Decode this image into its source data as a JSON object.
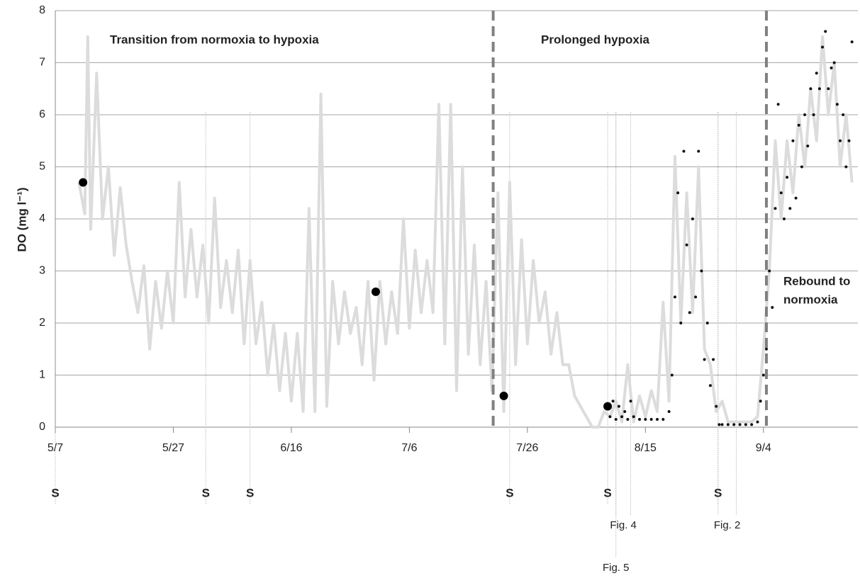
{
  "chart_data": {
    "type": "line",
    "y_label": "DO (mg l⁻¹)",
    "ylim": [
      0,
      8
    ],
    "yticks": [
      0,
      1,
      2,
      3,
      4,
      5,
      6,
      7,
      8
    ],
    "grid": true,
    "xlim": [
      0,
      136
    ],
    "xticks": [
      {
        "value": 0,
        "label": "5/7"
      },
      {
        "value": 20,
        "label": "5/27"
      },
      {
        "value": 40,
        "label": "6/16"
      },
      {
        "value": 60,
        "label": "7/6"
      },
      {
        "value": 80,
        "label": "7/26"
      },
      {
        "value": 100,
        "label": "8/15"
      },
      {
        "value": 120,
        "label": "9/4"
      }
    ],
    "series": [
      {
        "style": "line",
        "color": "#dcdcdc",
        "x": [
          4,
          5,
          5.5,
          6,
          7,
          8,
          9,
          10,
          11,
          12,
          13,
          14,
          15,
          16,
          17,
          18,
          19,
          20,
          21,
          22,
          23,
          24,
          25,
          26,
          27,
          28,
          29,
          30,
          31,
          32,
          33,
          34,
          35,
          36,
          37,
          38,
          39,
          40,
          41,
          42,
          43,
          44,
          45,
          46,
          47,
          48,
          49,
          50,
          51,
          52,
          53,
          54,
          55,
          56,
          57,
          58,
          59,
          60,
          61,
          62,
          63,
          64,
          65,
          66,
          67,
          68,
          69,
          70,
          71,
          72,
          73,
          74,
          75,
          76,
          77,
          78,
          79,
          80,
          81,
          82,
          83,
          84,
          85,
          86,
          87,
          88,
          89,
          90,
          91,
          92,
          93,
          94,
          95,
          96,
          97,
          98,
          99,
          100,
          101,
          102,
          103,
          104,
          105,
          106,
          107,
          108,
          109,
          110,
          111,
          112,
          113,
          114,
          115,
          116,
          117,
          118,
          119,
          120,
          121,
          122,
          123,
          124,
          125,
          126,
          127,
          128,
          129,
          130,
          131,
          132,
          133,
          134,
          135
        ],
        "values": [
          4.7,
          4.1,
          7.5,
          3.8,
          6.8,
          4,
          5,
          3.3,
          4.6,
          3.5,
          2.8,
          2.2,
          3.1,
          1.5,
          2.8,
          1.9,
          3,
          2,
          4.7,
          2.5,
          3.8,
          2.5,
          3.5,
          2,
          4.4,
          2.3,
          3.2,
          2.2,
          3.4,
          1.6,
          3.2,
          1.6,
          2.4,
          1,
          2,
          0.7,
          1.8,
          0.5,
          1.8,
          0.3,
          4.2,
          0.3,
          6.4,
          0.4,
          2.8,
          1.6,
          2.6,
          1.8,
          2.3,
          1.2,
          2.8,
          0.9,
          2.8,
          1.6,
          2.6,
          1.8,
          4,
          1.9,
          3.4,
          2.2,
          3.2,
          2.2,
          6.2,
          1.6,
          6.2,
          0.7,
          5,
          1.4,
          3.5,
          1.2,
          2.8,
          0.7,
          4.5,
          0.3,
          4.7,
          1.2,
          3.6,
          1.6,
          3.2,
          2,
          2.6,
          1.4,
          2.2,
          1.2,
          1.2,
          0.6,
          0.4,
          0.2,
          0,
          0,
          0.3,
          0.2,
          0.5,
          0.1,
          1.2,
          0.1,
          0.6,
          0.2,
          0.7,
          0.3,
          2.4,
          0.5,
          5.2,
          2,
          4.5,
          2.2,
          5,
          1.5,
          1.2,
          0.3,
          0.5,
          0.1,
          0.1,
          0.1,
          0.1,
          0.1,
          0.2,
          1.5,
          3,
          5.5,
          4,
          5.5,
          4.5,
          6,
          5,
          6.5,
          5.5,
          7.5,
          6,
          7,
          5,
          6,
          4.7
        ]
      },
      {
        "style": "dots",
        "color": "#111111",
        "x": [
          94,
          94.5,
          95,
          95.5,
          96,
          96.5,
          97,
          97.5,
          98,
          99,
          100,
          101,
          102,
          103,
          104,
          104.5,
          105,
          105.5,
          106,
          106.5,
          107,
          107.5,
          108,
          108.5,
          109,
          109.5,
          110,
          110.5,
          111,
          111.5,
          112,
          112.5,
          113,
          114,
          115,
          116,
          117,
          118,
          119,
          119.5,
          120,
          120.5,
          121,
          121.5,
          122,
          122.5,
          123,
          123.5,
          124,
          124.5,
          125,
          125.5,
          126,
          126.5,
          127,
          127.5,
          128,
          128.5,
          129,
          129.5,
          130,
          130.5,
          131,
          131.5,
          132,
          132.5,
          133,
          133.5,
          134,
          134.5,
          135
        ],
        "values": [
          0.2,
          0.5,
          0.15,
          0.4,
          0.2,
          0.3,
          0.15,
          0.5,
          0.2,
          0.15,
          0.15,
          0.15,
          0.15,
          0.15,
          0.3,
          1,
          2.5,
          4.5,
          2,
          5.3,
          3.5,
          2.2,
          4,
          2.5,
          5.3,
          3,
          1.3,
          2,
          0.8,
          1.3,
          0.4,
          0.05,
          0.05,
          0.05,
          0.05,
          0.05,
          0.05,
          0.05,
          0.1,
          0.5,
          1,
          1.5,
          3,
          2.3,
          4.2,
          6.2,
          4.5,
          4,
          4.8,
          4.2,
          5.5,
          4.4,
          5.8,
          5,
          6,
          5.4,
          6.5,
          6,
          6.8,
          6.5,
          7.3,
          7.6,
          6.5,
          6.9,
          7,
          6.2,
          5.5,
          6,
          5,
          5.5,
          7.4
        ]
      },
      {
        "style": "points",
        "color": "#000000",
        "x": [
          4.7,
          54.3,
          76,
          93.6
        ],
        "values": [
          4.7,
          2.6,
          0.6,
          0.4
        ]
      }
    ],
    "phase_lines": [
      74.2,
      120.5
    ],
    "phase_color": "#808080",
    "annotations": [
      [
        "Transition from normoxia to hypoxia"
      ],
      [
        "Prolonged hypoxia"
      ],
      [
        "Rebound to",
        "normoxia"
      ]
    ],
    "samples": {
      "label": "S",
      "x": [
        0,
        25.5,
        33,
        77,
        93.6,
        112.3
      ]
    },
    "figures": [
      {
        "label": "Fig. 4",
        "x": [
          95,
          97.5
        ]
      },
      {
        "label": "Fig. 2",
        "x": [
          112.3,
          115.4
        ]
      },
      {
        "label": "Fig. 5",
        "x": [
          95
        ]
      }
    ]
  }
}
